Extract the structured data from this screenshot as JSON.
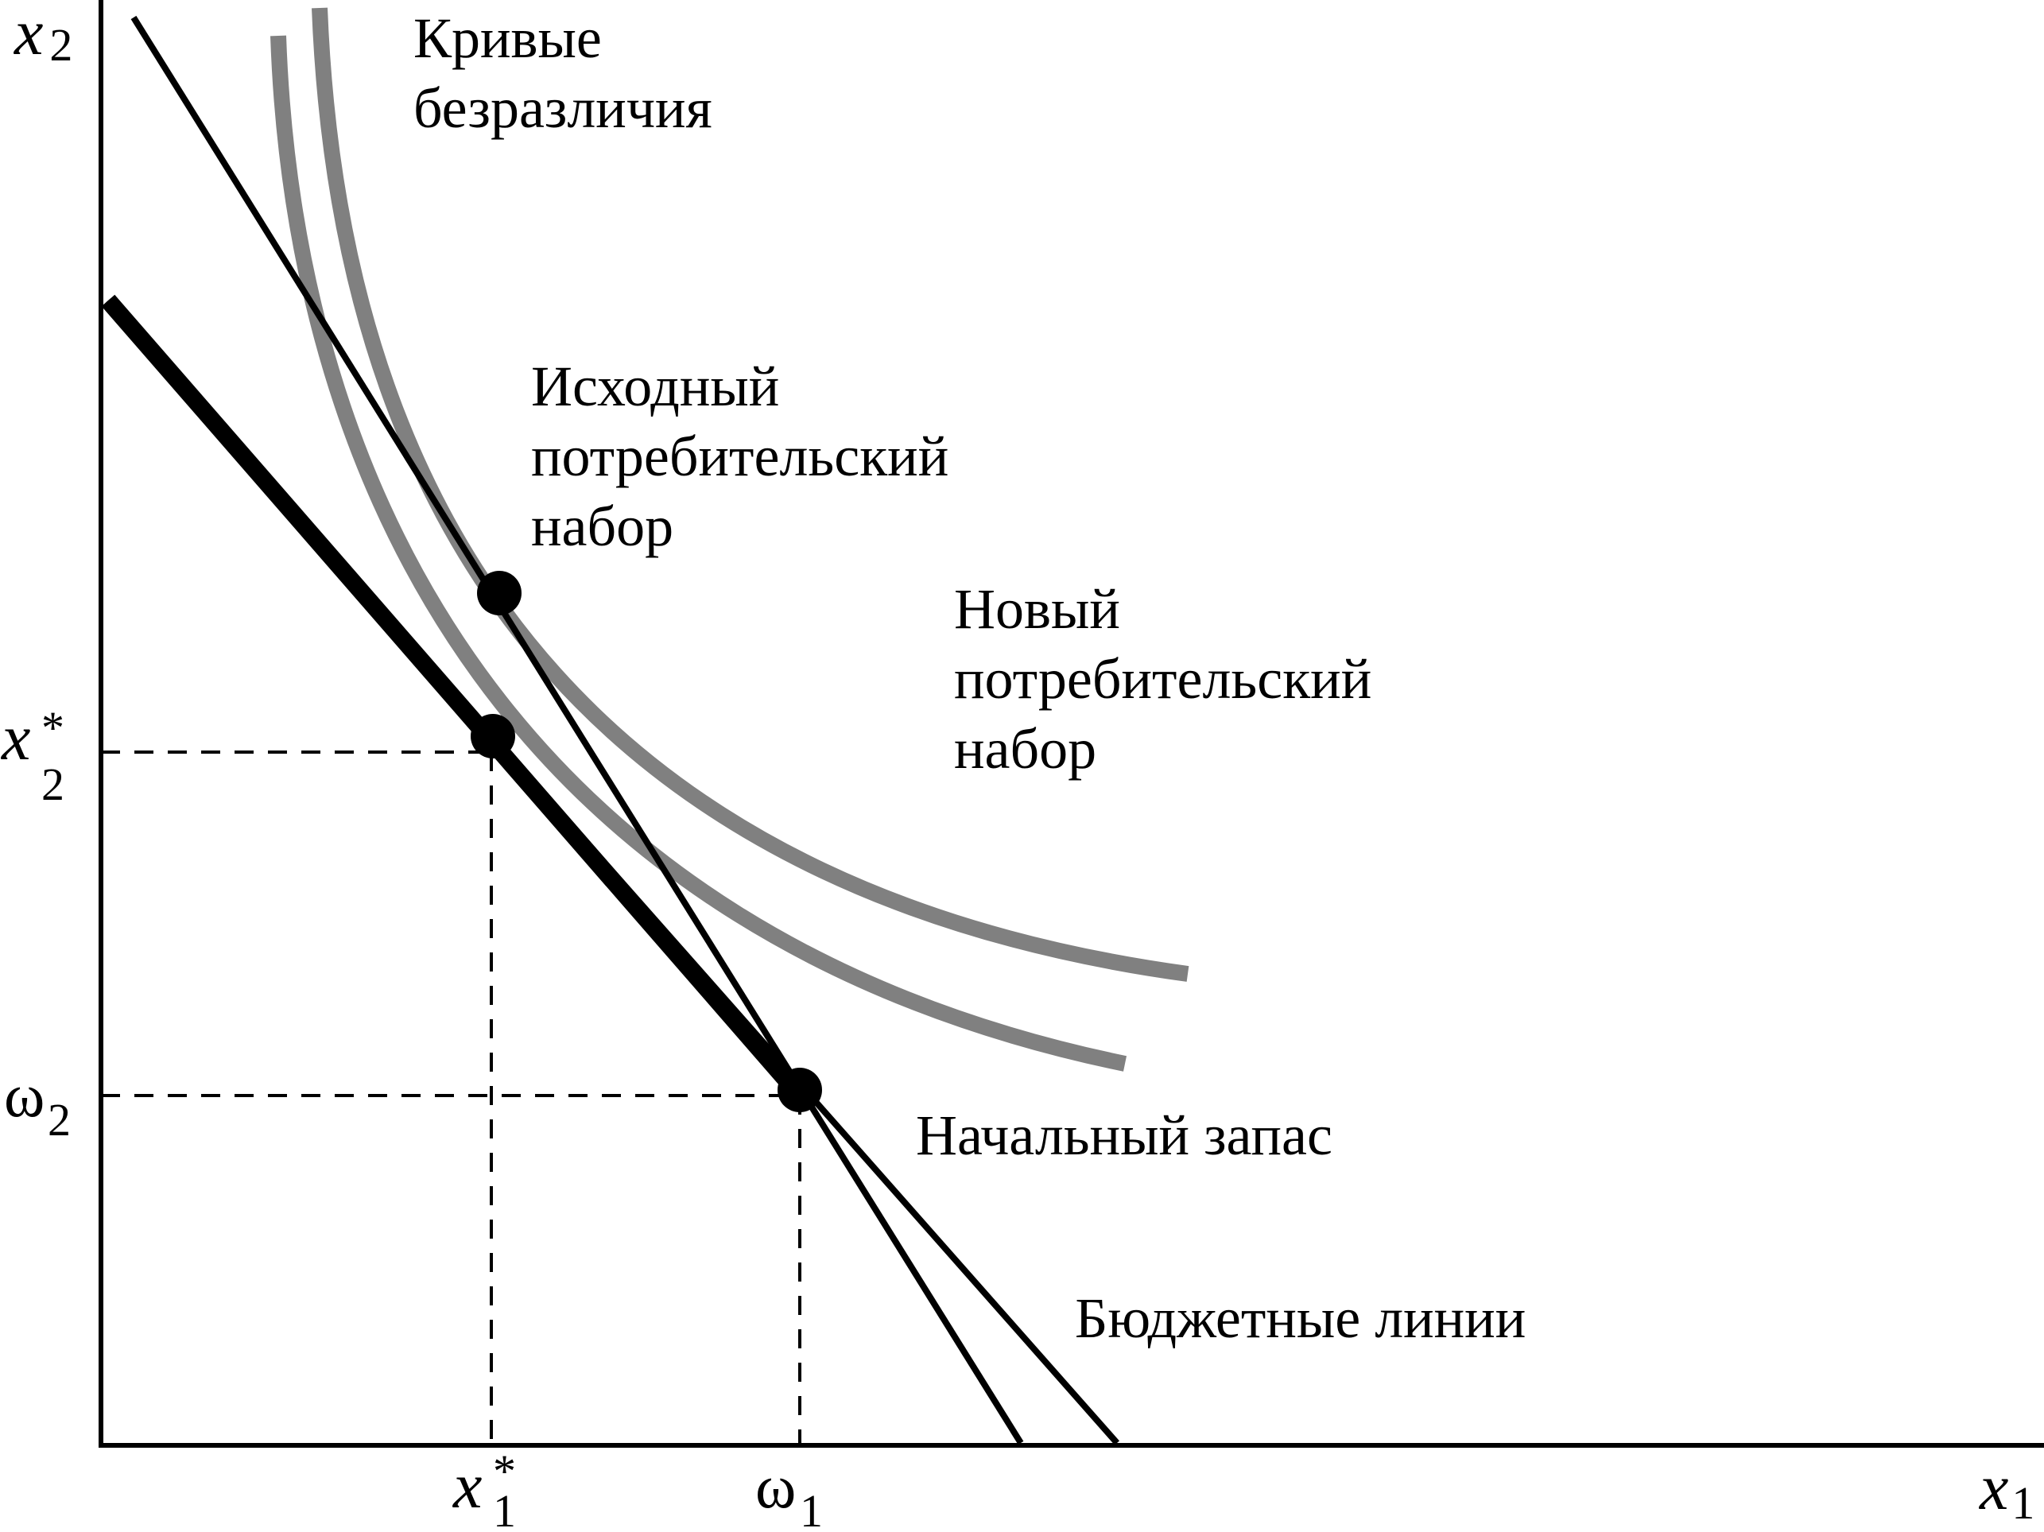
{
  "axes": {
    "y_var": "x",
    "y_sub": "2",
    "x_var": "x",
    "x_sub": "1"
  },
  "ticks": {
    "x2_star_var": "x",
    "x2_star_sup": "*",
    "x2_star_sub": "2",
    "omega2_sym": "ω",
    "omega2_sub": "2",
    "x1_star_var": "x",
    "x1_star_sup": "*",
    "x1_star_sub": "1",
    "omega1_sym": "ω",
    "omega1_sub": "1"
  },
  "labels": {
    "indifference_line1": "Кривые",
    "indifference_line2": "безразличия",
    "original_line1": "Исходный",
    "original_line2": "потребительский",
    "original_line3": "набор",
    "new_line1": "Новый",
    "new_line2": "потребительский",
    "new_line3": "набор",
    "endowment": "Начальный запас",
    "budget_lines": "Бюджетные линии"
  },
  "colors": {
    "axis": "#000000",
    "budget": "#000000",
    "indifference": "#808080",
    "guides": "#000000",
    "points": "#000000"
  }
}
